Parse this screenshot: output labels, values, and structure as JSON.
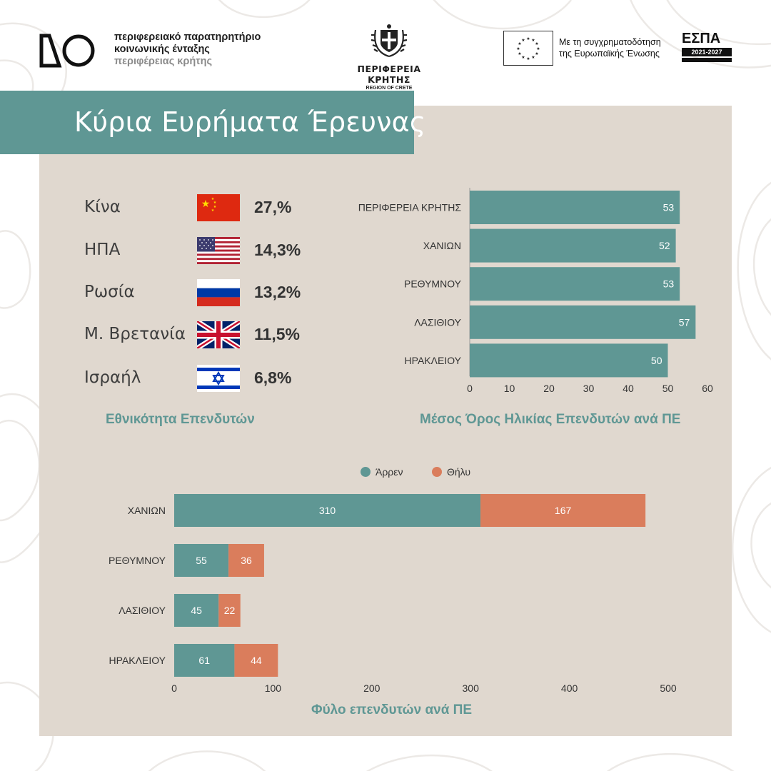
{
  "header": {
    "org_line1": "περιφερειακό παρατηρητήριο",
    "org_line2": "κοινωνικής ένταξης",
    "org_line3": "περιφέρειας κρήτης",
    "region_name": "ΠΕΡΙΦΕΡΕΙΑ ΚΡΗΤΗΣ",
    "region_sub": "REGION OF CRETE",
    "eu_text_line1": "Με τη συγχρηματοδότηση",
    "eu_text_line2": "της Ευρωπαϊκής Ένωσης",
    "espa_name": "ΕΣΠΑ",
    "espa_years": "2021-2027"
  },
  "title": "Κύρια Ευρήματα Έρευνας",
  "nationality": {
    "caption": "Εθνικότητα Επενδυτών",
    "items": [
      {
        "country": "Κίνα",
        "percent": "27,%",
        "flag": "china-flag"
      },
      {
        "country": "ΗΠΑ",
        "percent": "14,3%",
        "flag": "usa-flag"
      },
      {
        "country": "Ρωσία",
        "percent": "13,2%",
        "flag": "russia-flag"
      },
      {
        "country": "Μ. Βρετανία",
        "percent": "11,5%",
        "flag": "uk-flag"
      },
      {
        "country": "Ισραήλ",
        "percent": "6,8%",
        "flag": "israel-flag"
      }
    ]
  },
  "colors": {
    "teal": "#5f9794",
    "orange": "#da7d5c",
    "panel": "#e0d8cf"
  },
  "chart_data": [
    {
      "type": "bar",
      "orientation": "horizontal",
      "title": "Μέσος Όρος Ηλικίας Επενδυτών ανά ΠΕ",
      "categories": [
        "ΠΕΡΙΦΕΡΕΙΑ ΚΡΗΤΗΣ",
        "ΧΑΝΙΩΝ",
        "ΡΕΘΥΜΝΟΥ",
        "ΛΑΣΙΘΙΟΥ",
        "ΗΡΑΚΛΕΙΟΥ"
      ],
      "values": [
        53,
        52,
        53,
        57,
        50
      ],
      "xlim": [
        0,
        60
      ],
      "ticks": [
        0,
        10,
        20,
        30,
        40,
        50,
        60
      ],
      "grid": false
    },
    {
      "type": "bar",
      "orientation": "horizontal",
      "stacked": true,
      "title": "Φύλο επενδυτών ανά ΠΕ",
      "categories": [
        "ΧΑΝΙΩΝ",
        "ΡΕΘΥΜΝΟΥ",
        "ΛΑΣΙΘΙΟΥ",
        "ΗΡΑΚΛΕΙΟΥ"
      ],
      "series": [
        {
          "name": "Άρρεν",
          "values": [
            310,
            55,
            45,
            61
          ]
        },
        {
          "name": "Θήλυ",
          "values": [
            167,
            36,
            22,
            44
          ]
        }
      ],
      "xlim": [
        0,
        500
      ],
      "ticks": [
        0,
        100,
        200,
        300,
        400,
        500
      ],
      "legend": "top",
      "grid": false
    }
  ]
}
